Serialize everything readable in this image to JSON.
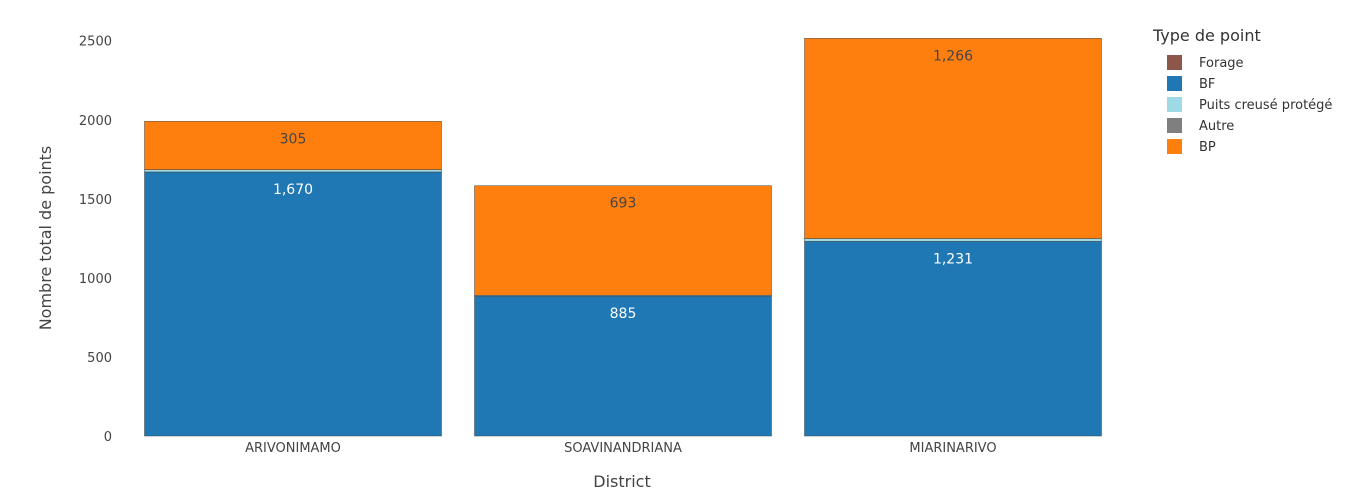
{
  "chart_data": {
    "type": "bar",
    "barmode": "stack",
    "categories": [
      "ARIVONIMAMO",
      "SOAVINANDRIANA",
      "MIARINARIVO"
    ],
    "series": [
      {
        "name": "Forage",
        "color": "#8c564b",
        "values": [
          0,
          0,
          0
        ],
        "labels": [
          "",
          "",
          ""
        ]
      },
      {
        "name": "BF",
        "color": "#1f77b4",
        "values": [
          1670,
          885,
          1231
        ],
        "labels": [
          "1,670",
          "885",
          "1,231"
        ]
      },
      {
        "name": "Puits creusé protégé",
        "color": "#9edae5",
        "values": [
          15,
          5,
          18
        ],
        "labels": [
          "",
          "",
          ""
        ]
      },
      {
        "name": "Autre",
        "color": "#7f7f7f",
        "values": [
          0,
          0,
          0
        ],
        "labels": [
          "",
          "",
          ""
        ]
      },
      {
        "name": "BP",
        "color": "#ff7f0e",
        "values": [
          305,
          693,
          1266
        ],
        "labels": [
          "305",
          "693",
          "1,266"
        ]
      }
    ],
    "xlabel": "District",
    "ylabel": "Nombre total de points",
    "ylim": [
      0,
      2530
    ],
    "yticks": [
      0,
      500,
      1000,
      1500,
      2000,
      2500
    ],
    "ytick_labels": [
      "0",
      "500",
      "1000",
      "1500",
      "2000",
      "2500"
    ],
    "legend_title": "Type de point",
    "legend_position": "top-right",
    "grid": false,
    "label_colors": {
      "BF": "#ffffff",
      "BP": "#444444"
    }
  }
}
